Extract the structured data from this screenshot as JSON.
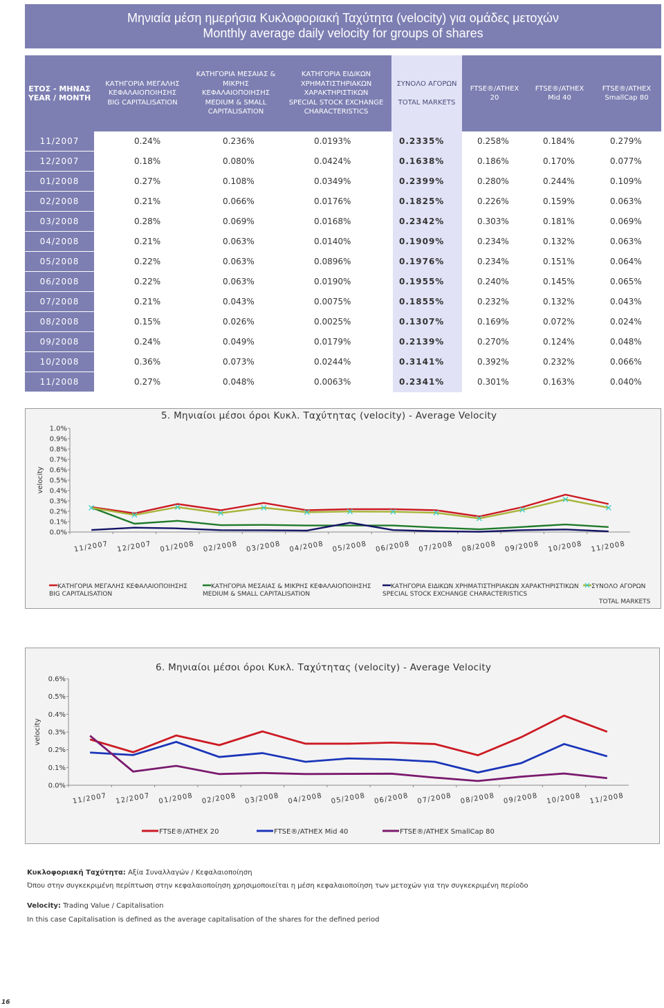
{
  "title": {
    "greek": "Μηνιαία μέση ημερήσια Κυκλοφοριακή Ταχύτητα (velocity) για ομάδες μετοχών",
    "english": "Monthly average daily velocity for groups of shares"
  },
  "table": {
    "headers": [
      {
        "gr": "ΕΤΟΣ - ΜΗΝΑΣ",
        "en": "YEAR / MONTH"
      },
      {
        "gr": "ΚΑΤΗΓΟΡΙΑ ΜΕΓΑΛΗΣ ΚΕΦΑΛΑΙΟΠΟΙΗΣΗΣ",
        "en": "BIG CAPITALISATION"
      },
      {
        "gr": "ΚΑΤΗΓΟΡΙΑ ΜΕΣΑΙΑΣ & ΜΙΚΡΗΣ ΚΕΦΑΛΑΙΟΠΟΙΗΣΗΣ",
        "en": "MEDIUM & SMALL CAPITALISATION"
      },
      {
        "gr": "ΚΑΤΗΓΟΡΙΑ ΕΙΔΙΚΩΝ ΧΡΗΜΑΤΙΣΤΗΡΙΑΚΩΝ ΧΑΡΑΚΤΗΡΙΣΤΙΚΩΝ",
        "en": "SPECIAL STOCK EXCHANGE CHARACTERISTICS"
      },
      {
        "gr": "ΣΥΝΟΛΟ ΑΓΟΡΩΝ",
        "en": "TOTAL MARKETS"
      },
      {
        "gr": "FTSE®/ATHEX",
        "en": "20"
      },
      {
        "gr": "FTSE®/ATHEX",
        "en": "Mid 40"
      },
      {
        "gr": "FTSE®/ATHEX",
        "en": "SmallCap 80"
      }
    ],
    "rows": [
      [
        "11/2007",
        "0.24%",
        "0.236%",
        "0.0193%",
        "0.2335%",
        "0.258%",
        "0.184%",
        "0.279%"
      ],
      [
        "12/2007",
        "0.18%",
        "0.080%",
        "0.0424%",
        "0.1638%",
        "0.186%",
        "0.170%",
        "0.077%"
      ],
      [
        "01/2008",
        "0.27%",
        "0.108%",
        "0.0349%",
        "0.2399%",
        "0.280%",
        "0.244%",
        "0.109%"
      ],
      [
        "02/2008",
        "0.21%",
        "0.066%",
        "0.0176%",
        "0.1825%",
        "0.226%",
        "0.159%",
        "0.063%"
      ],
      [
        "03/2008",
        "0.28%",
        "0.069%",
        "0.0168%",
        "0.2342%",
        "0.303%",
        "0.181%",
        "0.069%"
      ],
      [
        "04/2008",
        "0.21%",
        "0.063%",
        "0.0140%",
        "0.1909%",
        "0.234%",
        "0.132%",
        "0.063%"
      ],
      [
        "05/2008",
        "0.22%",
        "0.063%",
        "0.0896%",
        "0.1976%",
        "0.234%",
        "0.151%",
        "0.064%"
      ],
      [
        "06/2008",
        "0.22%",
        "0.063%",
        "0.0190%",
        "0.1955%",
        "0.240%",
        "0.145%",
        "0.065%"
      ],
      [
        "07/2008",
        "0.21%",
        "0.043%",
        "0.0075%",
        "0.1855%",
        "0.232%",
        "0.132%",
        "0.043%"
      ],
      [
        "08/2008",
        "0.15%",
        "0.026%",
        "0.0025%",
        "0.1307%",
        "0.169%",
        "0.072%",
        "0.024%"
      ],
      [
        "09/2008",
        "0.24%",
        "0.049%",
        "0.0179%",
        "0.2139%",
        "0.270%",
        "0.124%",
        "0.048%"
      ],
      [
        "10/2008",
        "0.36%",
        "0.073%",
        "0.0244%",
        "0.3141%",
        "0.392%",
        "0.232%",
        "0.066%"
      ],
      [
        "11/2008",
        "0.27%",
        "0.048%",
        "0.0063%",
        "0.2341%",
        "0.301%",
        "0.163%",
        "0.040%"
      ]
    ]
  },
  "colors": {
    "header_dark": "#7d7fb2",
    "header_light": "#e2e2f6",
    "big": "#cc1a22",
    "medium": "#1f7a2a",
    "special": "#141466",
    "total": "#a8b43a",
    "total_marker": "#40d0c8",
    "ftse20": "#cc1a22",
    "mid40": "#1a35b8",
    "small80": "#7a1a6e"
  },
  "chart_data": [
    {
      "type": "line",
      "title": "5. Μηνιαίοι μέσοι όροι Κυκλ. Ταχύτητας (velocity) - Average Velocity",
      "ylabel": "velocity",
      "xlabel": "",
      "ylim": [
        0,
        1.0
      ],
      "y_ticks": [
        "0.0%",
        "0.1%",
        "0.2%",
        "0.3%",
        "0.4%",
        "0.5%",
        "0.6%",
        "0.7%",
        "0.8%",
        "0.9%",
        "1.0%"
      ],
      "categories": [
        "11/2007",
        "12/2007",
        "01/2008",
        "02/2008",
        "03/2008",
        "04/2008",
        "05/2008",
        "06/2008",
        "07/2008",
        "08/2008",
        "09/2008",
        "10/2008",
        "11/2008"
      ],
      "series": [
        {
          "name": "ΚΑΤΗΓΟΡΙΑ ΜΕΓΑΛΗΣ ΚΕΦΑΛΑΙΟΠΟΙΗΣΗΣ",
          "name2": "BIG CAPITALISATION",
          "color_key": "big",
          "values": [
            0.24,
            0.18,
            0.27,
            0.21,
            0.28,
            0.21,
            0.22,
            0.22,
            0.21,
            0.15,
            0.24,
            0.36,
            0.27
          ]
        },
        {
          "name": "ΚΑΤΗΓΟΡΙΑ ΜΕΣΑΙΑΣ & ΜΙΚΡΗΣ ΚΕΦΑΛΑΙΟΠΟΙΗΣΗΣ",
          "name2": "MEDIUM & SMALL CAPITALISATION",
          "color_key": "medium",
          "values": [
            0.236,
            0.08,
            0.108,
            0.066,
            0.069,
            0.063,
            0.063,
            0.063,
            0.043,
            0.026,
            0.049,
            0.073,
            0.048
          ]
        },
        {
          "name": "ΚΑΤΗΓΟΡΙΑ ΕΙΔΙΚΩΝ ΧΡΗΜΑΤΙΣΤΗΡΙΑΚΩΝ ΧΑΡΑΚΤΗΡΙΣΤΙΚΩΝ",
          "name2": "SPECIAL STOCK EXCHANGE CHARACTERISTICS",
          "color_key": "special",
          "values": [
            0.0193,
            0.0424,
            0.0349,
            0.0176,
            0.0168,
            0.014,
            0.0896,
            0.019,
            0.0075,
            0.0025,
            0.0179,
            0.0244,
            0.0063
          ]
        },
        {
          "name": "ΣΥΝΟΛΟ ΑΓΟΡΩΝ",
          "name2": "TOTAL MARKETS",
          "color_key": "total",
          "values": [
            0.2335,
            0.1638,
            0.2399,
            0.1825,
            0.2342,
            0.1909,
            0.1976,
            0.1955,
            0.1855,
            0.1307,
            0.2139,
            0.3141,
            0.2341
          ]
        }
      ]
    },
    {
      "type": "line",
      "title": "6. Μηνιαίοι μέσοι όροι Κυκλ. Ταχύτητας (velocity) - Average Velocity",
      "ylabel": "velocity",
      "xlabel": "",
      "ylim": [
        0,
        0.6
      ],
      "y_ticks": [
        "0.0%",
        "0.1%",
        "0.2%",
        "0.3%",
        "0.4%",
        "0.5%",
        "0.6%"
      ],
      "categories": [
        "11/2007",
        "12/2007",
        "01/2008",
        "02/2008",
        "03/2008",
        "04/2008",
        "05/2008",
        "06/2008",
        "07/2008",
        "08/2008",
        "09/2008",
        "10/2008",
        "11/2008"
      ],
      "series": [
        {
          "name": "FTSE®/ATHEX 20",
          "color_key": "ftse20",
          "values": [
            0.258,
            0.186,
            0.28,
            0.226,
            0.303,
            0.234,
            0.234,
            0.24,
            0.232,
            0.169,
            0.27,
            0.392,
            0.301
          ]
        },
        {
          "name": "FTSE®/ATHEX Mid 40",
          "color_key": "mid40",
          "values": [
            0.184,
            0.17,
            0.244,
            0.159,
            0.181,
            0.132,
            0.151,
            0.145,
            0.132,
            0.072,
            0.124,
            0.232,
            0.163
          ]
        },
        {
          "name": "FTSE®/ATHEX SmallCap 80",
          "color_key": "small80",
          "values": [
            0.279,
            0.077,
            0.109,
            0.063,
            0.069,
            0.063,
            0.064,
            0.065,
            0.043,
            0.024,
            0.048,
            0.066,
            0.04
          ]
        }
      ]
    }
  ],
  "footnotes": {
    "gr_label": "Κυκλοφοριακή Ταχύτητα:",
    "gr_def": "Αξία Συναλλαγών / Κεφαλαιοποίηση",
    "gr_note": "Όπου στην συγκεκριμένη περίπτωση στην κεφαλαιοποίηση χρησιμοποιείται η μέση κεφαλαιοποίηση των μετοχών για την συγκεκριμένη περίοδο",
    "en_label": "Velocity:",
    "en_def": "Trading Value / Capitalisation",
    "en_note": "In this case Capitalisation is defined as the average capitalisation of the shares for the defined period"
  },
  "page_number": "16"
}
